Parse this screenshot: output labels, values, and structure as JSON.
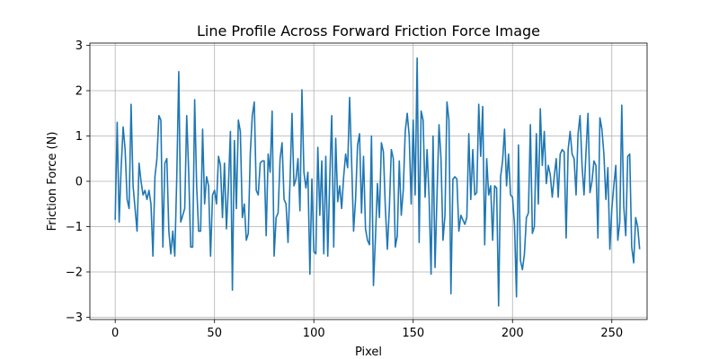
{
  "chart_data": {
    "type": "line",
    "title": "Line Profile Across Forward Friction Force Image",
    "xlabel": "Pixel",
    "ylabel": "Friction Force (N)",
    "xlim": [
      -12.75,
      267.75
    ],
    "ylim": [
      -3.05,
      3.05
    ],
    "xticks": [
      0,
      50,
      100,
      150,
      200,
      250
    ],
    "yticks": [
      -3,
      -2,
      -1,
      0,
      1,
      2,
      3
    ],
    "ytick_labels": [
      "−3",
      "−2",
      "−1",
      "0",
      "1",
      "2",
      "3"
    ],
    "grid": true,
    "line_color": "#1f77b4",
    "series": [
      {
        "values": [
          -0.85,
          1.3,
          -0.9,
          0.3,
          1.2,
          0.7,
          -0.4,
          -0.6,
          1.7,
          -0.1,
          -0.6,
          -1.1,
          0.4,
          0.0,
          -0.3,
          -0.2,
          -0.4,
          -0.2,
          -0.5,
          -1.65,
          0.1,
          0.5,
          1.45,
          1.35,
          -1.45,
          0.4,
          0.5,
          -1.1,
          -1.6,
          -1.1,
          -1.65,
          0.1,
          2.42,
          -0.9,
          -0.75,
          -0.6,
          1.45,
          0.2,
          -1.45,
          -1.45,
          1.8,
          -0.1,
          -1.1,
          -1.1,
          1.15,
          -0.5,
          0.1,
          -0.1,
          -1.65,
          -0.3,
          -0.2,
          -0.5,
          0.55,
          0.35,
          -0.8,
          0.4,
          -1.05,
          -0.1,
          1.1,
          -2.4,
          0.9,
          -0.6,
          1.35,
          1.1,
          -0.8,
          -0.5,
          -1.3,
          -1.15,
          0.6,
          1.45,
          1.75,
          -0.2,
          -0.3,
          0.4,
          0.45,
          0.45,
          -1.2,
          0.6,
          0.2,
          1.55,
          -1.65,
          -0.8,
          -0.7,
          0.5,
          0.85,
          -0.4,
          -0.5,
          -1.35,
          0.0,
          1.5,
          -0.1,
          0.05,
          0.5,
          -0.65,
          2.02,
          0.2,
          -0.15,
          0.2,
          -2.05,
          0.05,
          -1.55,
          -1.6,
          0.75,
          -0.75,
          0.45,
          -1.6,
          0.55,
          -1.65,
          0.05,
          1.45,
          -1.45,
          0.95,
          -0.45,
          -0.1,
          -0.6,
          0.1,
          0.6,
          0.3,
          1.85,
          0.45,
          -1.1,
          -0.4,
          0.8,
          1.05,
          -0.7,
          0.55,
          -1.05,
          -1.3,
          -1.4,
          1.0,
          -2.3,
          -1.25,
          -0.05,
          -0.8,
          0.85,
          0.65,
          -0.6,
          -1.5,
          -0.6,
          0.7,
          0.5,
          -1.45,
          -1.2,
          0.45,
          -0.75,
          -0.2,
          1.1,
          1.5,
          1.0,
          -0.5,
          1.35,
          -0.3,
          2.72,
          -1.35,
          1.55,
          1.35,
          -0.35,
          0.7,
          -0.35,
          -2.05,
          1.0,
          -1.9,
          -0.3,
          1.25,
          0.5,
          -1.3,
          -0.75,
          1.75,
          1.35,
          -2.48,
          0.05,
          0.1,
          0.05,
          -1.1,
          -0.75,
          -0.85,
          -0.95,
          -0.8,
          1.05,
          -0.4,
          0.7,
          -0.3,
          -0.25,
          1.7,
          0.55,
          1.65,
          -1.4,
          0.5,
          -0.3,
          -0.1,
          -1.3,
          -0.1,
          -0.15,
          -2.75,
          0.1,
          0.45,
          1.15,
          -0.1,
          0.6,
          -0.3,
          -0.35,
          -0.95,
          -2.55,
          0.8,
          -1.75,
          -1.95,
          -1.6,
          -0.8,
          -0.7,
          1.25,
          -1.15,
          -1.0,
          1.05,
          -0.5,
          1.6,
          0.35,
          1.1,
          -0.05,
          0.35,
          0.15,
          -0.35,
          0.1,
          0.5,
          -0.35,
          0.6,
          0.7,
          0.65,
          -1.25,
          0.7,
          1.1,
          0.6,
          0.5,
          -0.3,
          1.05,
          1.45,
          0.35,
          -0.3,
          0.65,
          1.5,
          -0.25,
          0.0,
          0.45,
          0.35,
          -1.25,
          1.4,
          1.15,
          0.6,
          -0.4,
          0.3,
          -1.5,
          -0.6,
          -0.1,
          0.35,
          -1.3,
          -0.9,
          1.68,
          -0.55,
          -1.2,
          0.55,
          0.6,
          -1.45,
          -1.8,
          -0.8,
          -1.0,
          -1.5
        ]
      }
    ]
  }
}
